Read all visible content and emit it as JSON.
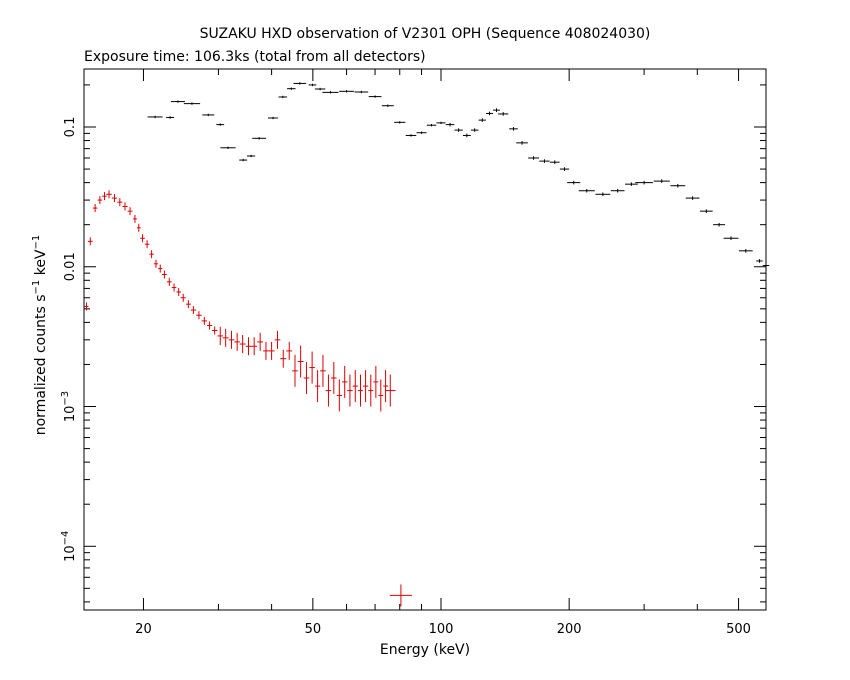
{
  "chart_data": {
    "type": "scatter",
    "title": "SUZAKU HXD observation of V2301 OPH (Sequence 408024030)",
    "subtitle": "Exposure time: 106.3ks (total from all detectors)",
    "xlabel": "Energy (keV)",
    "ylabel": {
      "main": "normalized counts s",
      "sup1": "−1",
      "mid": " keV",
      "sup2": "−1"
    },
    "xscale": "log",
    "yscale": "log",
    "xlim": [
      14.5,
      580
    ],
    "ylim": [
      3.5e-05,
      0.26
    ],
    "xticks": {
      "major": [
        20,
        50,
        100,
        200,
        500
      ],
      "major_labels": [
        "20",
        "50",
        "100",
        "200",
        "500"
      ],
      "minor": [
        30,
        40,
        60,
        70,
        80,
        90,
        300,
        400
      ]
    },
    "yticks": [
      {
        "value": 0.1,
        "base": "0.1",
        "exp": ""
      },
      {
        "value": 0.01,
        "base": "0.01",
        "exp": ""
      },
      {
        "value": 0.001,
        "base": "10",
        "exp": "−3"
      },
      {
        "value": 0.0001,
        "base": "10",
        "exp": "−4"
      }
    ],
    "series": [
      {
        "color": "#000000",
        "style": "errorbar",
        "points": [
          [
            21.3,
            0.118
          ],
          [
            23.1,
            0.117
          ],
          [
            24.1,
            0.152
          ],
          [
            26.0,
            0.147
          ],
          [
            28.4,
            0.122
          ],
          [
            30.3,
            0.104
          ],
          [
            31.6,
            0.071
          ],
          [
            34.3,
            0.058
          ],
          [
            35.8,
            0.062
          ],
          [
            37.4,
            0.083
          ],
          [
            40.3,
            0.116
          ],
          [
            42.5,
            0.164
          ],
          [
            44.5,
            0.188
          ],
          [
            46.6,
            0.205
          ],
          [
            49.9,
            0.2
          ],
          [
            52.0,
            0.187
          ],
          [
            55.0,
            0.177
          ],
          [
            60.0,
            0.18
          ],
          [
            65.0,
            0.178
          ],
          [
            70.0,
            0.165
          ],
          [
            75.0,
            0.142
          ],
          [
            80.0,
            0.108
          ],
          [
            85.0,
            0.087
          ],
          [
            90.0,
            0.091
          ],
          [
            95.0,
            0.103
          ],
          [
            100.0,
            0.107
          ],
          [
            105.0,
            0.104
          ],
          [
            110.0,
            0.095
          ],
          [
            115.0,
            0.087
          ],
          [
            120.0,
            0.095
          ],
          [
            125.0,
            0.112
          ],
          [
            130.0,
            0.125
          ],
          [
            135.0,
            0.132
          ],
          [
            140.0,
            0.124
          ],
          [
            148.0,
            0.097
          ],
          [
            155.0,
            0.077
          ],
          [
            165.0,
            0.06
          ],
          [
            175.0,
            0.057
          ],
          [
            185.0,
            0.056
          ],
          [
            195.0,
            0.05
          ],
          [
            205.0,
            0.04
          ],
          [
            220.0,
            0.035
          ],
          [
            240.0,
            0.033
          ],
          [
            260.0,
            0.035
          ],
          [
            280.0,
            0.039
          ],
          [
            300.0,
            0.04
          ],
          [
            330.0,
            0.041
          ],
          [
            360.0,
            0.038
          ],
          [
            390.0,
            0.031
          ],
          [
            420.0,
            0.025
          ],
          [
            450.0,
            0.02
          ],
          [
            480.0,
            0.016
          ],
          [
            520.0,
            0.013
          ],
          [
            560.0,
            0.011
          ],
          [
            580.0,
            0.0102
          ]
        ]
      },
      {
        "color": "#dd0000",
        "style": "cross",
        "points": [
          [
            14.7,
            0.0052
          ],
          [
            15.0,
            0.0152
          ],
          [
            15.4,
            0.0263
          ],
          [
            15.8,
            0.03
          ],
          [
            16.2,
            0.032
          ],
          [
            16.6,
            0.033
          ],
          [
            17.1,
            0.031
          ],
          [
            17.6,
            0.029
          ],
          [
            18.1,
            0.027
          ],
          [
            18.6,
            0.025
          ],
          [
            19.1,
            0.022
          ],
          [
            19.5,
            0.019
          ],
          [
            19.9,
            0.016
          ],
          [
            20.4,
            0.0145
          ],
          [
            20.9,
            0.0123
          ],
          [
            21.4,
            0.0105
          ],
          [
            21.9,
            0.0097
          ],
          [
            22.4,
            0.0088
          ],
          [
            23.0,
            0.0078
          ],
          [
            23.6,
            0.0071
          ],
          [
            24.2,
            0.0066
          ],
          [
            24.8,
            0.006
          ],
          [
            25.5,
            0.0054
          ],
          [
            26.2,
            0.0049
          ],
          [
            27.0,
            0.0045
          ],
          [
            27.8,
            0.0041
          ],
          [
            28.6,
            0.0038
          ],
          [
            29.4,
            0.0035
          ],
          [
            30.3,
            0.0032
          ],
          [
            31.2,
            0.0031
          ],
          [
            32.2,
            0.003
          ],
          [
            33.2,
            0.0029
          ],
          [
            34.2,
            0.0028
          ],
          [
            35.3,
            0.0027
          ],
          [
            36.4,
            0.0027
          ],
          [
            37.6,
            0.0029
          ],
          [
            38.8,
            0.0025
          ],
          [
            40.0,
            0.0025
          ],
          [
            41.3,
            0.003
          ],
          [
            42.6,
            0.0022
          ],
          [
            44.0,
            0.0025
          ],
          [
            45.4,
            0.0018
          ],
          [
            46.8,
            0.0021
          ],
          [
            48.3,
            0.0016
          ],
          [
            49.8,
            0.0019
          ],
          [
            51.3,
            0.0014
          ],
          [
            52.8,
            0.0018
          ],
          [
            54.4,
            0.0013
          ],
          [
            56.0,
            0.0016
          ],
          [
            57.7,
            0.0012
          ],
          [
            59.4,
            0.0015
          ],
          [
            61.1,
            0.0013
          ],
          [
            62.9,
            0.0014
          ],
          [
            64.7,
            0.0013
          ],
          [
            66.5,
            0.0014
          ],
          [
            68.4,
            0.0013
          ],
          [
            70.3,
            0.0015
          ],
          [
            72.2,
            0.0012
          ],
          [
            74.1,
            0.0014
          ],
          [
            76.0,
            0.0013
          ],
          [
            80.5,
            4.45e-05
          ]
        ]
      }
    ],
    "grid": false,
    "legend": "none"
  }
}
